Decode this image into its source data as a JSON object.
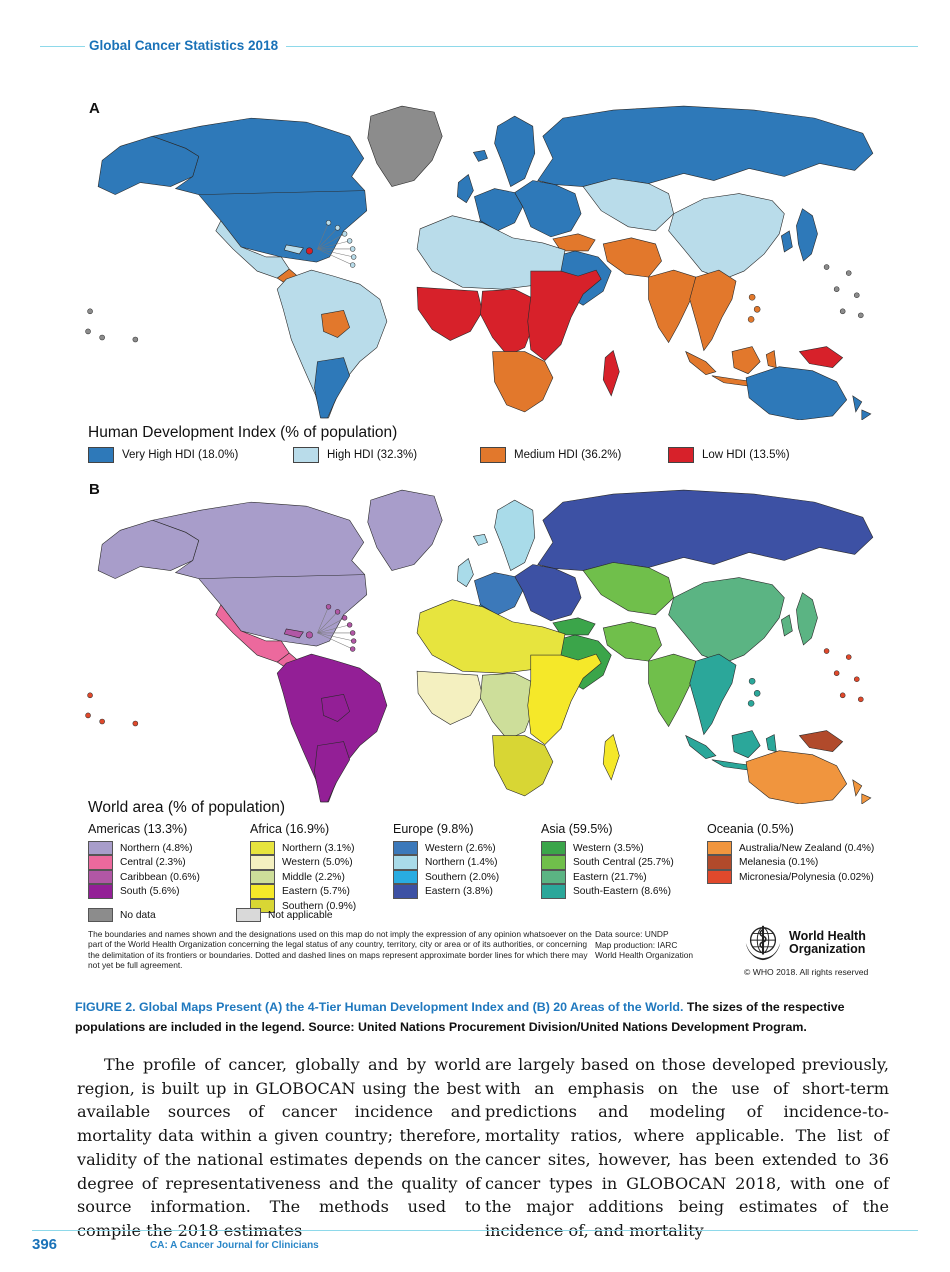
{
  "header": {
    "title": "Global Cancer Statistics 2018"
  },
  "figure": {
    "panel_a_label": "A",
    "panel_b_label": "B",
    "legend_a": {
      "title": "Human Development Index (% of population)",
      "items": [
        {
          "label": "Very High HDI (18.0%)",
          "color": "#2e79b9"
        },
        {
          "label": "High HDI (32.3%)",
          "color": "#b9dcea"
        },
        {
          "label": "Medium HDI (36.2%)",
          "color": "#e2782c"
        },
        {
          "label": "Low HDI (13.5%)",
          "color": "#d7212a"
        }
      ]
    },
    "legend_b": {
      "title": "World area (% of population)",
      "groups": [
        {
          "label": "Americas (13.3%)",
          "items": [
            {
              "label": "Northern (4.8%)",
              "color": "#a89dca"
            },
            {
              "label": "Central (2.3%)",
              "color": "#ec699d"
            },
            {
              "label": "Caribbean (0.6%)",
              "color": "#b157a5"
            },
            {
              "label": "South (5.6%)",
              "color": "#931f96"
            }
          ]
        },
        {
          "label": "Africa (16.9%)",
          "items": [
            {
              "label": "Northern (3.1%)",
              "color": "#e7e43e"
            },
            {
              "label": "Western (5.0%)",
              "color": "#f4f0c0"
            },
            {
              "label": "Middle (2.2%)",
              "color": "#cdde9a"
            },
            {
              "label": "Eastern (5.7%)",
              "color": "#f5e829"
            },
            {
              "label": "Southern (0.9%)",
              "color": "#d8d634"
            }
          ]
        },
        {
          "label": "Europe (9.8%)",
          "items": [
            {
              "label": "Western (2.6%)",
              "color": "#3c79ba"
            },
            {
              "label": "Northern (1.4%)",
              "color": "#a9dbe9"
            },
            {
              "label": "Southern (2.0%)",
              "color": "#29ace1"
            },
            {
              "label": "Eastern (3.8%)",
              "color": "#3d51a4"
            }
          ]
        },
        {
          "label": "Asia (59.5%)",
          "items": [
            {
              "label": "Western (3.5%)",
              "color": "#3ba54a"
            },
            {
              "label": "South Central (25.7%)",
              "color": "#70bf4b"
            },
            {
              "label": "Eastern (21.7%)",
              "color": "#5bb483"
            },
            {
              "label": "South-Eastern (8.6%)",
              "color": "#2ba79a"
            }
          ]
        },
        {
          "label": "Oceania (0.5%)",
          "items": [
            {
              "label": "Australia/New Zealand (0.4%)",
              "color": "#f0953e"
            },
            {
              "label": "Melanesia (0.1%)",
              "color": "#b14a2b"
            },
            {
              "label": "Micronesia/Polynesia (0.02%)",
              "color": "#e0492c"
            }
          ]
        }
      ]
    },
    "extra_legend": [
      {
        "label": "No data",
        "color": "#8c8c8c"
      },
      {
        "label": "Not applicable",
        "color": "#d9d9d9"
      }
    ],
    "footnote": "The boundaries and names shown and the designations used on this map do not imply the expression of any opinion whatsoever on the part of the World Health Organization concerning the legal status of any country, territory, city or area or of its authorities, or concerning the delimitation of its frontiers or boundaries. Dotted and dashed lines on maps represent approximate border lines for which there may not yet be full agreement.",
    "credits": {
      "line1": "Data source: UNDP",
      "line2": "Map production: IARC",
      "line3": "World Health Organization"
    },
    "who": {
      "name_line1": "World Health",
      "name_line2": "Organization",
      "copyright": "© WHO 2018. All rights reserved"
    },
    "caption": {
      "highlight": "FIGURE 2. Global Maps Present (A) the 4-Tier Human Development Index and (B) 20 Areas of the World.",
      "rest": " The sizes of the respective populations are included in the legend. Source: United Nations Procurement Division/United Nations Development Program."
    }
  },
  "body": {
    "left_column": "The profile of cancer, globally and by world region, is built up in GLOBOCAN using the best available sources of cancer incidence and mortality data within a given country; therefore, validity of the national estimates depends on the degree of representativeness and the quality of source information. The methods used to compile the 2018 estimates",
    "right_column": "are largely based on those developed previously, with an emphasis on the use of short-term predictions and modeling of incidence-to-mortality ratios, where applicable. The list of cancer sites, however, has been extended to 36 cancer types in GLOBOCAN 2018, with one of the major additions being estimates of the incidence of, and mortality"
  },
  "footer": {
    "page_number": "396",
    "journal": "CA: A Cancer Journal for Clinicians"
  },
  "map_a": {
    "region_fills": {
      "russia": "#2e79b9",
      "canada_usa": "#2e79b9",
      "alaska": "#2e79b9",
      "greenland": "#8c8c8c",
      "scandinavia": "#2e79b9",
      "europe_east": "#2e79b9",
      "europe_west": "#2e79b9",
      "seurope": "#2e79b9",
      "uk": "#2e79b9",
      "iceland": "#2e79b9",
      "turkey": "#e2782c",
      "centralasia": "#b9dcea",
      "china": "#b9dcea",
      "korea": "#2e79b9",
      "japan": "#2e79b9",
      "arabia": "#2e79b9",
      "iran_afgh": "#e2782c",
      "india": "#e2782c",
      "seasia": "#e2782c",
      "philippines": "#e2782c",
      "indonesia": "#e2782c",
      "png": "#d7212a",
      "australia": "#2e79b9",
      "nz": "#2e79b9",
      "africa_north": "#b9dcea",
      "africa_west": "#d7212a",
      "africa_middle": "#d7212a",
      "africa_east": "#d7212a",
      "africa_south": "#e2782c",
      "madagascar": "#d7212a",
      "mexico": "#b9dcea",
      "centralam": "#e2782c",
      "cuba": "#b9dcea",
      "hispaniola": "#d7212a",
      "carib_fan": "#b9dcea",
      "southamerica": "#b9dcea",
      "southcone": "#2e79b9",
      "bolivia": "#e2782c",
      "pacific_left": "#8c8c8c",
      "pacific_right": "#8c8c8c"
    }
  },
  "map_b": {
    "region_fills": {
      "russia": "#3d51a4",
      "canada_usa": "#a89dca",
      "alaska": "#a89dca",
      "greenland": "#a89dca",
      "scandinavia": "#a9dbe9",
      "europe_east": "#3d51a4",
      "europe_west": "#3c79ba",
      "seurope": "#29ace1",
      "uk": "#a9dbe9",
      "iceland": "#a9dbe9",
      "turkey": "#3ba54a",
      "centralasia": "#70bf4b",
      "china": "#5bb483",
      "korea": "#5bb483",
      "japan": "#5bb483",
      "arabia": "#3ba54a",
      "iran_afgh": "#70bf4b",
      "india": "#70bf4b",
      "seasia": "#2ba79a",
      "philippines": "#2ba79a",
      "indonesia": "#2ba79a",
      "png": "#b14a2b",
      "australia": "#f0953e",
      "nz": "#f0953e",
      "africa_north": "#e7e43e",
      "africa_west": "#f4f0c0",
      "africa_middle": "#cdde9a",
      "africa_east": "#f5e829",
      "africa_south": "#d8d634",
      "madagascar": "#f5e829",
      "mexico": "#ec699d",
      "centralam": "#ec699d",
      "cuba": "#b157a5",
      "hispaniola": "#b157a5",
      "carib_fan": "#b157a5",
      "southamerica": "#931f96",
      "southcone": "#931f96",
      "bolivia": "#931f96",
      "pacific_left": "#e0492c",
      "pacific_right": "#e0492c"
    }
  }
}
